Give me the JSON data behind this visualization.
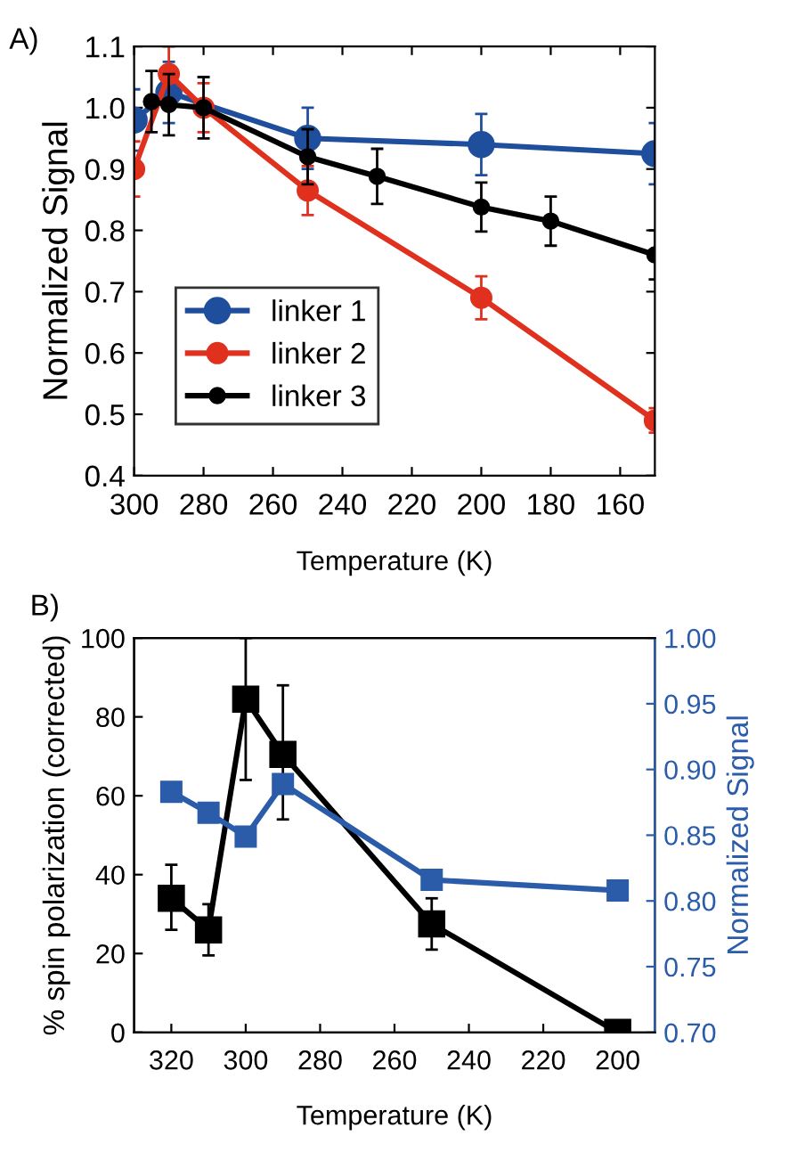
{
  "chart_data": [
    {
      "type": "line",
      "title": "A)",
      "xlabel": "Temperature (K)",
      "ylabel": "Normalized Signal",
      "xlim": [
        300,
        150
      ],
      "xticks": [
        300,
        280,
        260,
        240,
        220,
        200,
        180,
        160
      ],
      "ylim": [
        0.4,
        1.1
      ],
      "yticks": [
        0.4,
        0.5,
        0.6,
        0.7,
        0.8,
        0.9,
        {
          "value": 1.0,
          "label": "1.0"
        },
        1.1
      ],
      "marker": "circle",
      "line_style": "solid",
      "grid": false,
      "legend": "bottom left",
      "series": [
        {
          "name": "linker 1",
          "color": "#1f4e9c",
          "x": [
            300,
            290,
            250,
            200,
            150
          ],
          "values": [
            0.98,
            1.025,
            0.95,
            0.94,
            0.925
          ],
          "errors": [
            0.05,
            0.05,
            0.05,
            0.05,
            0.05
          ]
        },
        {
          "name": "linker 2",
          "color": "#e0301e",
          "x": [
            300,
            290,
            280,
            250,
            200,
            150
          ],
          "values": [
            0.9,
            1.055,
            1.0,
            0.865,
            0.69,
            0.49
          ],
          "errors": [
            0.045,
            0.045,
            0.04,
            0.04,
            0.035,
            0.02
          ]
        },
        {
          "name": "linker 3",
          "color": "#000000",
          "x": [
            295,
            290,
            280,
            250,
            230,
            200,
            180,
            150
          ],
          "values": [
            1.01,
            1.005,
            1.0,
            0.92,
            0.888,
            0.838,
            0.815,
            0.76
          ],
          "errors": [
            0.05,
            0.05,
            0.05,
            0.045,
            0.045,
            0.04,
            0.04,
            0.04
          ]
        }
      ]
    },
    {
      "type": "line",
      "title": "B)",
      "xlabel": "Temperature (K)",
      "ylabel": "% spin polarization (corrected)",
      "y2label": "Normalized Signal",
      "xlim": [
        330,
        190
      ],
      "xticks": [
        320,
        300,
        280,
        260,
        240,
        220,
        200
      ],
      "ylim": [
        0,
        100
      ],
      "yticks": [
        0,
        20,
        40,
        60,
        80,
        100
      ],
      "y2lim": [
        0.7,
        1.0
      ],
      "y2ticks": [
        {
          "value": 0.7,
          "label": "0.70"
        },
        0.75,
        {
          "value": 0.8,
          "label": "0.80"
        },
        0.85,
        {
          "value": 0.9,
          "label": "0.90"
        },
        0.95,
        {
          "value": 1.0,
          "label": "1.00"
        }
      ],
      "marker": "square",
      "line_style": "solid",
      "grid": false,
      "series": [
        {
          "color": "#000000",
          "x": [
            320,
            310,
            300,
            290,
            250,
            200
          ],
          "values": [
            34,
            26,
            84.5,
            70.5,
            27.5,
            0
          ],
          "errors": [
            [
              26,
              42.5
            ],
            [
              19.5,
              32.5
            ],
            [
              64,
              100
            ],
            [
              54,
              88
            ],
            [
              21,
              34
            ],
            null
          ]
        },
        {
          "color": "#2a5caa",
          "axis": "y2",
          "x": [
            320,
            310,
            300,
            290,
            250,
            200
          ],
          "values": [
            0.883,
            0.867,
            0.849,
            0.889,
            0.816,
            0.808
          ]
        }
      ]
    }
  ]
}
